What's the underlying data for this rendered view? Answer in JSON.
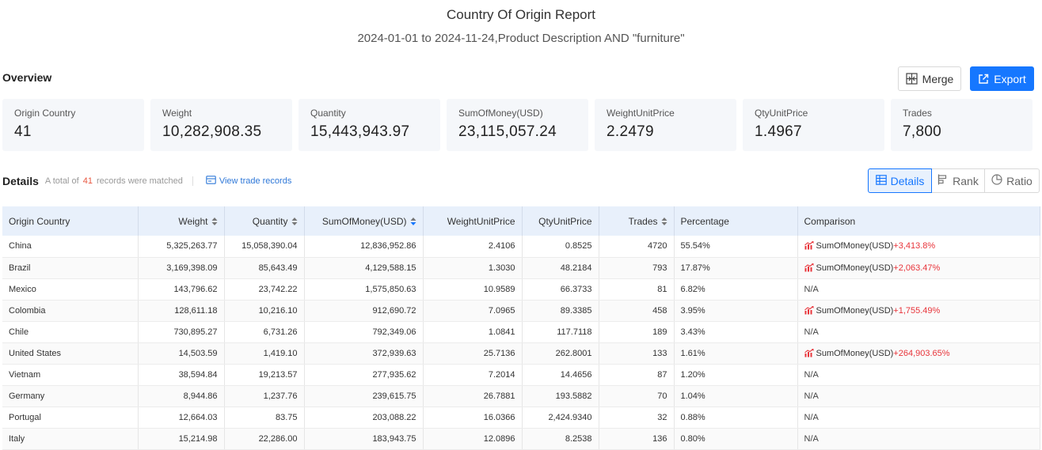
{
  "header": {
    "title": "Country Of Origin Report",
    "subtitle": "2024-01-01 to 2024-11-24,Product Description AND \"furniture\""
  },
  "overview": {
    "label": "Overview",
    "merge_label": "Merge",
    "export_label": "Export",
    "cards": [
      {
        "label": "Origin Country",
        "value": "41"
      },
      {
        "label": "Weight",
        "value": "10,282,908.35"
      },
      {
        "label": "Quantity",
        "value": "15,443,943.97"
      },
      {
        "label": "SumOfMoney(USD)",
        "value": "23,115,057.24"
      },
      {
        "label": "WeightUnitPrice",
        "value": "2.2479"
      },
      {
        "label": "QtyUnitPrice",
        "value": "1.4967"
      },
      {
        "label": "Trades",
        "value": "7,800"
      }
    ]
  },
  "details": {
    "label": "Details",
    "matched_prefix": "A total of",
    "matched_count": "41",
    "matched_suffix": "records were matched",
    "view_link": "View trade records",
    "views": {
      "details": "Details",
      "rank": "Rank",
      "ratio": "Ratio"
    }
  },
  "table": {
    "columns": [
      "Origin Country",
      "Weight",
      "Quantity",
      "SumOfMoney(USD)",
      "WeightUnitPrice",
      "QtyUnitPrice",
      "Trades",
      "Percentage",
      "Comparison"
    ],
    "rows": [
      {
        "country": "China",
        "weight": "5,325,263.77",
        "quantity": "15,058,390.04",
        "money": "12,836,952.86",
        "wup": "2.4106",
        "qup": "0.8525",
        "trades": "4720",
        "pct": "55.54%",
        "cmp_label": "SumOfMoney(USD)",
        "cmp_value": "+3,413.8%"
      },
      {
        "country": "Brazil",
        "weight": "3,169,398.09",
        "quantity": "85,643.49",
        "money": "4,129,588.15",
        "wup": "1.3030",
        "qup": "48.2184",
        "trades": "793",
        "pct": "17.87%",
        "cmp_label": "SumOfMoney(USD)",
        "cmp_value": "+2,063.47%"
      },
      {
        "country": "Mexico",
        "weight": "143,796.62",
        "quantity": "23,742.22",
        "money": "1,575,850.63",
        "wup": "10.9589",
        "qup": "66.3733",
        "trades": "81",
        "pct": "6.82%",
        "cmp_na": "N/A"
      },
      {
        "country": "Colombia",
        "weight": "128,611.18",
        "quantity": "10,216.10",
        "money": "912,690.72",
        "wup": "7.0965",
        "qup": "89.3385",
        "trades": "458",
        "pct": "3.95%",
        "cmp_label": "SumOfMoney(USD)",
        "cmp_value": "+1,755.49%"
      },
      {
        "country": "Chile",
        "weight": "730,895.27",
        "quantity": "6,731.26",
        "money": "792,349.06",
        "wup": "1.0841",
        "qup": "117.7118",
        "trades": "189",
        "pct": "3.43%",
        "cmp_na": "N/A"
      },
      {
        "country": "United States",
        "weight": "14,503.59",
        "quantity": "1,419.10",
        "money": "372,939.63",
        "wup": "25.7136",
        "qup": "262.8001",
        "trades": "133",
        "pct": "1.61%",
        "cmp_label": "SumOfMoney(USD)",
        "cmp_value": "+264,903.65%"
      },
      {
        "country": "Vietnam",
        "weight": "38,594.84",
        "quantity": "19,213.57",
        "money": "277,935.62",
        "wup": "7.2014",
        "qup": "14.4656",
        "trades": "87",
        "pct": "1.20%",
        "cmp_na": "N/A"
      },
      {
        "country": "Germany",
        "weight": "8,944.86",
        "quantity": "1,237.76",
        "money": "239,615.75",
        "wup": "26.7881",
        "qup": "193.5882",
        "trades": "70",
        "pct": "1.04%",
        "cmp_na": "N/A"
      },
      {
        "country": "Portugal",
        "weight": "12,664.03",
        "quantity": "83.75",
        "money": "203,088.22",
        "wup": "16.0366",
        "qup": "2,424.9340",
        "trades": "32",
        "pct": "0.88%",
        "cmp_na": "N/A"
      },
      {
        "country": "Italy",
        "weight": "15,214.98",
        "quantity": "22,286.00",
        "money": "183,943.75",
        "wup": "12.0896",
        "qup": "8.2538",
        "trades": "136",
        "pct": "0.80%",
        "cmp_na": "N/A"
      }
    ]
  },
  "colors": {
    "primary": "#1677ff",
    "up": "#e8343a",
    "header_bg": "#e8f0fb",
    "card_bg": "#f5f7fa"
  }
}
